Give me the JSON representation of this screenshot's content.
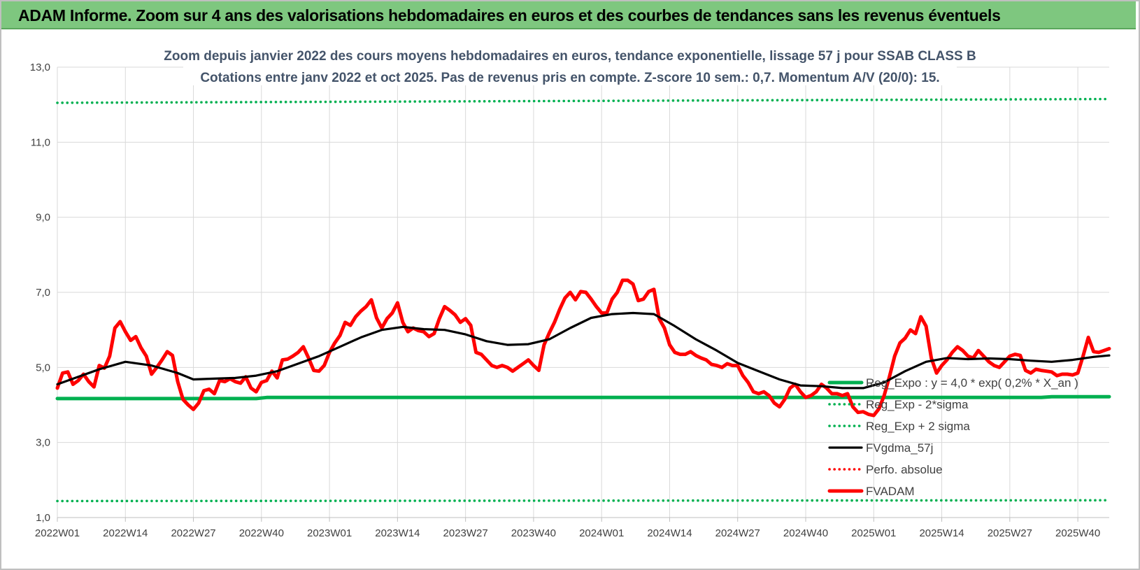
{
  "header": {
    "title": "ADAM Informe. Zoom sur 4 ans des valorisations hebdomadaires en euros et des courbes de tendances sans les revenus éventuels"
  },
  "chart_data": {
    "type": "line",
    "title": [
      "Zoom depuis janvier 2022 des cours moyens hebdomadaires en euros, tendance exponentielle, lissage 57 j pour SSAB CLASS B",
      "Cotations entre janv 2022 et oct 2025. Pas de revenus pris en compte. Z-score 10 sem.: 0,7. Momentum A/V (20/0): 15."
    ],
    "xlabel": "",
    "ylabel": "",
    "ylim": [
      1.0,
      13.0
    ],
    "grid": true,
    "legend_position": "right",
    "y_ticks": [
      "1,0",
      "3,0",
      "5,0",
      "7,0",
      "9,0",
      "11,0",
      "13,0"
    ],
    "x_ticks": [
      "2022W01",
      "2022W14",
      "2022W27",
      "2022W40",
      "2023W01",
      "2023W14",
      "2023W27",
      "2023W40",
      "2024W01",
      "2024W14",
      "2024W27",
      "2024W40",
      "2025W01",
      "2025W14",
      "2025W27",
      "2025W40"
    ],
    "x_tick_weeks": [
      0,
      13,
      26,
      39,
      52,
      65,
      78,
      91,
      104,
      117,
      130,
      143,
      156,
      169,
      182,
      195
    ],
    "n_weeks": 202,
    "legend": [
      "Reg_Expo : y = 4,0 * exp( 0,2% *  X_an )",
      "Reg_Exp - 2*sigma",
      "Reg_Exp + 2 sigma",
      "FVgdma_57j",
      "Perfo. absolue",
      "FVADAM"
    ],
    "series": [
      {
        "name": "Reg_Expo : y = 4,0 * exp( 0,2% *  X_an )",
        "color": "#00b050",
        "style": "solid-thick",
        "points": [
          [
            0,
            4.17
          ],
          [
            38,
            4.17
          ],
          [
            40,
            4.2
          ],
          [
            188,
            4.2
          ],
          [
            190,
            4.22
          ],
          [
            201,
            4.22
          ]
        ]
      },
      {
        "name": "Reg_Exp - 2*sigma",
        "color": "#00b050",
        "style": "dotted",
        "points": [
          [
            0,
            1.44
          ],
          [
            201,
            1.46
          ]
        ]
      },
      {
        "name": "Reg_Exp + 2 sigma",
        "color": "#00b050",
        "style": "dotted",
        "points": [
          [
            0,
            12.05
          ],
          [
            201,
            12.15
          ]
        ]
      },
      {
        "name": "FVgdma_57j",
        "color": "#000000",
        "style": "solid",
        "points": [
          [
            0,
            4.55
          ],
          [
            4,
            4.75
          ],
          [
            8,
            4.95
          ],
          [
            13,
            5.15
          ],
          [
            18,
            5.05
          ],
          [
            23,
            4.85
          ],
          [
            26,
            4.68
          ],
          [
            30,
            4.7
          ],
          [
            34,
            4.72
          ],
          [
            38,
            4.78
          ],
          [
            42,
            4.9
          ],
          [
            46,
            5.1
          ],
          [
            50,
            5.3
          ],
          [
            54,
            5.55
          ],
          [
            58,
            5.8
          ],
          [
            62,
            6.0
          ],
          [
            66,
            6.08
          ],
          [
            70,
            6.02
          ],
          [
            74,
            6.0
          ],
          [
            78,
            5.88
          ],
          [
            82,
            5.7
          ],
          [
            86,
            5.6
          ],
          [
            90,
            5.62
          ],
          [
            94,
            5.75
          ],
          [
            98,
            6.05
          ],
          [
            102,
            6.32
          ],
          [
            106,
            6.42
          ],
          [
            110,
            6.45
          ],
          [
            114,
            6.42
          ],
          [
            118,
            6.1
          ],
          [
            122,
            5.75
          ],
          [
            126,
            5.45
          ],
          [
            130,
            5.12
          ],
          [
            134,
            4.9
          ],
          [
            138,
            4.68
          ],
          [
            142,
            4.52
          ],
          [
            146,
            4.5
          ],
          [
            150,
            4.45
          ],
          [
            154,
            4.45
          ],
          [
            158,
            4.6
          ],
          [
            162,
            4.9
          ],
          [
            166,
            5.15
          ],
          [
            170,
            5.25
          ],
          [
            174,
            5.22
          ],
          [
            178,
            5.24
          ],
          [
            182,
            5.22
          ],
          [
            186,
            5.18
          ],
          [
            190,
            5.15
          ],
          [
            194,
            5.2
          ],
          [
            198,
            5.28
          ],
          [
            201,
            5.32
          ]
        ]
      },
      {
        "name": "Perfo. absolue",
        "color": "#ff0000",
        "style": "dotted",
        "points": []
      },
      {
        "name": "FVADAM",
        "color": "#ff0000",
        "style": "solid-thick",
        "points": [
          [
            0,
            4.45
          ],
          [
            1,
            4.85
          ],
          [
            2,
            4.88
          ],
          [
            3,
            4.55
          ],
          [
            4,
            4.65
          ],
          [
            5,
            4.82
          ],
          [
            6,
            4.62
          ],
          [
            7,
            4.48
          ],
          [
            8,
            5.05
          ],
          [
            9,
            4.98
          ],
          [
            10,
            5.3
          ],
          [
            11,
            6.05
          ],
          [
            12,
            6.22
          ],
          [
            13,
            5.95
          ],
          [
            14,
            5.72
          ],
          [
            15,
            5.82
          ],
          [
            16,
            5.52
          ],
          [
            17,
            5.3
          ],
          [
            18,
            4.82
          ],
          [
            19,
            5.0
          ],
          [
            20,
            5.2
          ],
          [
            21,
            5.42
          ],
          [
            22,
            5.32
          ],
          [
            23,
            4.62
          ],
          [
            24,
            4.15
          ],
          [
            25,
            4.0
          ],
          [
            26,
            3.88
          ],
          [
            27,
            4.05
          ],
          [
            28,
            4.38
          ],
          [
            29,
            4.42
          ],
          [
            30,
            4.3
          ],
          [
            31,
            4.65
          ],
          [
            32,
            4.62
          ],
          [
            33,
            4.7
          ],
          [
            34,
            4.62
          ],
          [
            35,
            4.58
          ],
          [
            36,
            4.75
          ],
          [
            37,
            4.45
          ],
          [
            38,
            4.35
          ],
          [
            39,
            4.6
          ],
          [
            40,
            4.65
          ],
          [
            41,
            4.9
          ],
          [
            42,
            4.72
          ],
          [
            43,
            5.2
          ],
          [
            44,
            5.22
          ],
          [
            45,
            5.3
          ],
          [
            46,
            5.4
          ],
          [
            47,
            5.55
          ],
          [
            48,
            5.25
          ],
          [
            49,
            4.92
          ],
          [
            50,
            4.9
          ],
          [
            51,
            5.05
          ],
          [
            52,
            5.4
          ],
          [
            53,
            5.65
          ],
          [
            54,
            5.85
          ],
          [
            55,
            6.2
          ],
          [
            56,
            6.12
          ],
          [
            57,
            6.35
          ],
          [
            58,
            6.5
          ],
          [
            59,
            6.62
          ],
          [
            60,
            6.8
          ],
          [
            61,
            6.32
          ],
          [
            62,
            6.05
          ],
          [
            63,
            6.3
          ],
          [
            64,
            6.45
          ],
          [
            65,
            6.72
          ],
          [
            66,
            6.2
          ],
          [
            67,
            5.95
          ],
          [
            68,
            6.05
          ],
          [
            69,
            5.98
          ],
          [
            70,
            5.95
          ],
          [
            71,
            5.82
          ],
          [
            72,
            5.9
          ],
          [
            73,
            6.3
          ],
          [
            74,
            6.62
          ],
          [
            75,
            6.52
          ],
          [
            76,
            6.4
          ],
          [
            77,
            6.2
          ],
          [
            78,
            6.3
          ],
          [
            79,
            6.12
          ],
          [
            80,
            5.4
          ],
          [
            81,
            5.35
          ],
          [
            82,
            5.2
          ],
          [
            83,
            5.05
          ],
          [
            84,
            5.0
          ],
          [
            85,
            5.05
          ],
          [
            86,
            5.0
          ],
          [
            87,
            4.9
          ],
          [
            88,
            5.0
          ],
          [
            89,
            5.1
          ],
          [
            90,
            5.2
          ],
          [
            91,
            5.05
          ],
          [
            92,
            4.92
          ],
          [
            93,
            5.6
          ],
          [
            94,
            5.92
          ],
          [
            95,
            6.2
          ],
          [
            96,
            6.55
          ],
          [
            97,
            6.85
          ],
          [
            98,
            7.0
          ],
          [
            99,
            6.8
          ],
          [
            100,
            7.02
          ],
          [
            101,
            7.0
          ],
          [
            102,
            6.82
          ],
          [
            103,
            6.62
          ],
          [
            104,
            6.45
          ],
          [
            105,
            6.45
          ],
          [
            106,
            6.82
          ],
          [
            107,
            7.0
          ],
          [
            108,
            7.32
          ],
          [
            109,
            7.32
          ],
          [
            110,
            7.22
          ],
          [
            111,
            6.78
          ],
          [
            112,
            6.82
          ],
          [
            113,
            7.02
          ],
          [
            114,
            7.08
          ],
          [
            115,
            6.3
          ],
          [
            116,
            6.05
          ],
          [
            117,
            5.6
          ],
          [
            118,
            5.4
          ],
          [
            119,
            5.35
          ],
          [
            120,
            5.35
          ],
          [
            121,
            5.42
          ],
          [
            122,
            5.32
          ],
          [
            123,
            5.25
          ],
          [
            124,
            5.2
          ],
          [
            125,
            5.08
          ],
          [
            126,
            5.05
          ],
          [
            127,
            5.0
          ],
          [
            128,
            5.1
          ],
          [
            129,
            5.05
          ],
          [
            130,
            5.05
          ],
          [
            131,
            4.78
          ],
          [
            132,
            4.6
          ],
          [
            133,
            4.35
          ],
          [
            134,
            4.3
          ],
          [
            135,
            4.35
          ],
          [
            136,
            4.25
          ],
          [
            137,
            4.05
          ],
          [
            138,
            3.95
          ],
          [
            139,
            4.15
          ],
          [
            140,
            4.45
          ],
          [
            141,
            4.55
          ],
          [
            142,
            4.35
          ],
          [
            143,
            4.2
          ],
          [
            144,
            4.25
          ],
          [
            145,
            4.35
          ],
          [
            146,
            4.55
          ],
          [
            147,
            4.45
          ],
          [
            148,
            4.3
          ],
          [
            149,
            4.3
          ],
          [
            150,
            4.25
          ],
          [
            151,
            4.3
          ],
          [
            152,
            3.95
          ],
          [
            153,
            3.8
          ],
          [
            154,
            3.82
          ],
          [
            155,
            3.75
          ],
          [
            156,
            3.72
          ],
          [
            157,
            3.9
          ],
          [
            158,
            4.25
          ],
          [
            159,
            4.75
          ],
          [
            160,
            5.3
          ],
          [
            161,
            5.65
          ],
          [
            162,
            5.78
          ],
          [
            163,
            6.0
          ],
          [
            164,
            5.9
          ],
          [
            165,
            6.35
          ],
          [
            166,
            6.1
          ],
          [
            167,
            5.25
          ],
          [
            168,
            4.85
          ],
          [
            169,
            5.05
          ],
          [
            170,
            5.2
          ],
          [
            171,
            5.4
          ],
          [
            172,
            5.55
          ],
          [
            173,
            5.45
          ],
          [
            174,
            5.3
          ],
          [
            175,
            5.25
          ],
          [
            176,
            5.45
          ],
          [
            177,
            5.3
          ],
          [
            178,
            5.15
          ],
          [
            179,
            5.05
          ],
          [
            180,
            5.0
          ],
          [
            181,
            5.15
          ],
          [
            182,
            5.3
          ],
          [
            183,
            5.35
          ],
          [
            184,
            5.32
          ],
          [
            185,
            4.92
          ],
          [
            186,
            4.85
          ],
          [
            187,
            4.95
          ],
          [
            188,
            4.92
          ],
          [
            189,
            4.9
          ],
          [
            190,
            4.88
          ],
          [
            191,
            4.78
          ],
          [
            192,
            4.82
          ],
          [
            193,
            4.82
          ],
          [
            194,
            4.8
          ],
          [
            195,
            4.85
          ],
          [
            196,
            5.3
          ],
          [
            197,
            5.8
          ],
          [
            198,
            5.42
          ],
          [
            199,
            5.4
          ],
          [
            200,
            5.45
          ],
          [
            201,
            5.5
          ]
        ]
      }
    ]
  }
}
